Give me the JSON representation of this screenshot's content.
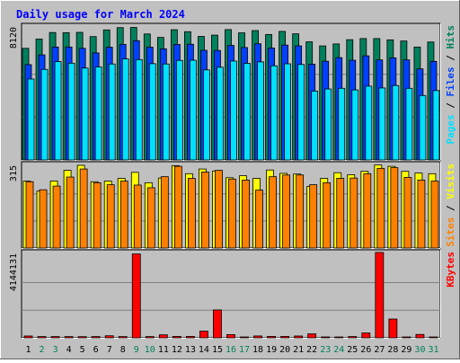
{
  "title": "Daily usage for March 2024",
  "colors": {
    "frame": "#c0c0c0",
    "panel_bg": "#c0c0c0",
    "title": "#0000ff",
    "hits": "#00805c",
    "files": "#0040ff",
    "pages": "#00e0ff",
    "visits": "#ffff00",
    "sites": "#ff8000",
    "kbytes": "#ff0000",
    "weekend_day": "#00805c",
    "weekday": "#000000"
  },
  "panels": [
    {
      "id": "hits",
      "max_label": "8120",
      "right_label_parts": [
        {
          "text": "Pages",
          "color": "#00e0ff"
        },
        {
          "text": " / ",
          "color": "#000000"
        },
        {
          "text": "Files",
          "color": "#0040ff"
        },
        {
          "text": " / ",
          "color": "#000000"
        },
        {
          "text": "Hits",
          "color": "#00805c"
        }
      ]
    },
    {
      "id": "visits",
      "max_label": "315",
      "right_label_parts": [
        {
          "text": "Sites",
          "color": "#ff8000"
        },
        {
          "text": " / ",
          "color": "#000000"
        },
        {
          "text": "Visits",
          "color": "#ffff00"
        }
      ]
    },
    {
      "id": "kbytes",
      "max_label": "4144131",
      "right_label_parts": [
        {
          "text": "KBytes",
          "color": "#ff0000"
        }
      ]
    }
  ],
  "chart_data": {
    "type": "bar",
    "title": "Daily usage for March 2024",
    "categories": [
      "1",
      "2",
      "3",
      "4",
      "5",
      "6",
      "7",
      "8",
      "9",
      "10",
      "11",
      "12",
      "13",
      "14",
      "15",
      "16",
      "17",
      "18",
      "19",
      "20",
      "21",
      "22",
      "23",
      "24",
      "25",
      "26",
      "27",
      "28",
      "29",
      "30",
      "31"
    ],
    "weekend_days": [
      2,
      3,
      9,
      10,
      16,
      17,
      23,
      24,
      30,
      31
    ],
    "series": [
      {
        "name": "Hits",
        "panel": "hits",
        "values": [
          6840,
          7410,
          7810,
          7800,
          7820,
          7560,
          7970,
          8110,
          8120,
          7720,
          7510,
          7980,
          7860,
          7570,
          7650,
          7990,
          7790,
          7930,
          7690,
          7880,
          7730,
          7240,
          6990,
          7110,
          7370,
          7440,
          7440,
          7360,
          7290,
          6920,
          7230
        ]
      },
      {
        "name": "Files",
        "panel": "files",
        "values": [
          5840,
          6440,
          6920,
          6920,
          6840,
          6560,
          6910,
          7080,
          7310,
          6910,
          6810,
          7080,
          7090,
          6720,
          6710,
          7020,
          6890,
          7120,
          6860,
          7040,
          6990,
          5870,
          6050,
          6270,
          6110,
          6380,
          6130,
          6260,
          6130,
          5580,
          6040
        ]
      },
      {
        "name": "Pages",
        "panel": "pages",
        "values": [
          4960,
          5550,
          6030,
          5930,
          5630,
          5700,
          5880,
          6190,
          6150,
          5900,
          5880,
          6100,
          6110,
          5520,
          5680,
          6060,
          5920,
          6010,
          5770,
          5890,
          5850,
          4220,
          4350,
          4390,
          4290,
          4520,
          4410,
          4560,
          4390,
          3950,
          4250
        ]
      },
      {
        "name": "Visits",
        "panel": "visits",
        "values": [
          200,
          170,
          200,
          232,
          247,
          198,
          200,
          208,
          226,
          195,
          209,
          246,
          222,
          236,
          230,
          210,
          216,
          208,
          233,
          223,
          221,
          184,
          208,
          225,
          219,
          229,
          248,
          244,
          229,
          224,
          222
        ]
      },
      {
        "name": "Sites",
        "panel": "visits",
        "values": [
          198,
          174,
          185,
          212,
          236,
          195,
          189,
          200,
          188,
          180,
          213,
          244,
          208,
          227,
          232,
          206,
          203,
          173,
          213,
          218,
          218,
          189,
          195,
          208,
          209,
          222,
          238,
          240,
          211,
          203,
          200
        ]
      },
      {
        "name": "KBytes",
        "panel": "kbytes",
        "values": [
          90000,
          62000,
          62000,
          62000,
          58000,
          62000,
          102000,
          62000,
          4144131,
          62000,
          150000,
          70000,
          70000,
          330000,
          1380000,
          160000,
          28000,
          92000,
          72000,
          72000,
          90000,
          196000,
          45000,
          39000,
          64000,
          240000,
          4220000,
          930000,
          44000,
          167000,
          26000
        ]
      }
    ]
  }
}
